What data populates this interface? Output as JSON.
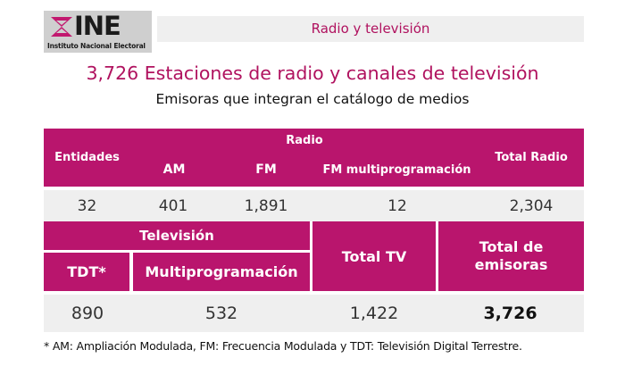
{
  "logo": {
    "name": "INE",
    "subtitle": "Instituto Nacional Electoral"
  },
  "section_title": "Radio y televisión",
  "main_title": "3,726 Estaciones de radio y canales de televisión",
  "subtitle": "Emisoras que integran el catálogo de medios",
  "radio_table": {
    "headers": {
      "entidades": "Entidades",
      "radio": "Radio",
      "am": "AM",
      "fm": "FM",
      "fm_multi": "FM multiprogramación",
      "total_radio": "Total Radio"
    },
    "values": {
      "entidades": "32",
      "am": "401",
      "fm": "1,891",
      "fm_multi": "12",
      "total_radio": "2,304"
    }
  },
  "tv_table": {
    "headers": {
      "television": "Televisión",
      "tdt": "TDT*",
      "multi": "Multiprogramación",
      "total_tv": "Total TV",
      "total_emisoras": "Total de emisoras"
    },
    "values": {
      "tdt": "890",
      "multi": "532",
      "total_tv": "1,422",
      "total_emisoras": "3,726"
    }
  },
  "footnote": "* AM: Ampliación Modulada, FM: Frecuencia Modulada y TDT: Televisión Digital Terrestre.",
  "colors": {
    "magenta": "#b9156d",
    "title_magenta": "#b0125f",
    "light_gray": "#efefef"
  }
}
